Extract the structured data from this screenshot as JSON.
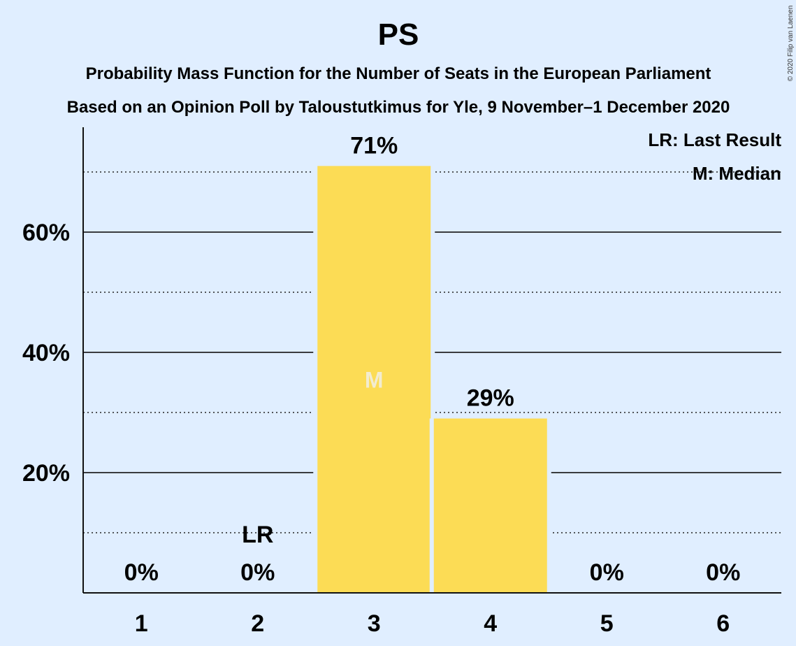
{
  "chart_data": {
    "type": "bar",
    "title": "PS",
    "subtitle_lines": [
      "Probability Mass Function for the Number of Seats in the European Parliament",
      "Based on an Opinion Poll by Taloustutkimus for Yle, 9 November–1 December 2020"
    ],
    "categories": [
      "1",
      "2",
      "3",
      "4",
      "5",
      "6"
    ],
    "values": [
      0,
      0,
      71,
      29,
      0,
      0
    ],
    "value_labels": [
      "0%",
      "0%",
      "71%",
      "29%",
      "0%",
      "0%"
    ],
    "ylim": [
      0,
      77
    ],
    "major_ticks": [
      20,
      40,
      60
    ],
    "major_tick_labels": [
      "20%",
      "40%",
      "60%"
    ],
    "minor_ticks": [
      10,
      30,
      50,
      70
    ],
    "last_result_category": "2",
    "last_result_marker": "LR",
    "median_category": "3",
    "median_marker": "M",
    "legend": [
      "LR: Last Result",
      "M: Median"
    ],
    "legend_position": "top-right",
    "bar_color": "#fcdc55",
    "copyright": "© 2020 Filip van Laenen"
  }
}
